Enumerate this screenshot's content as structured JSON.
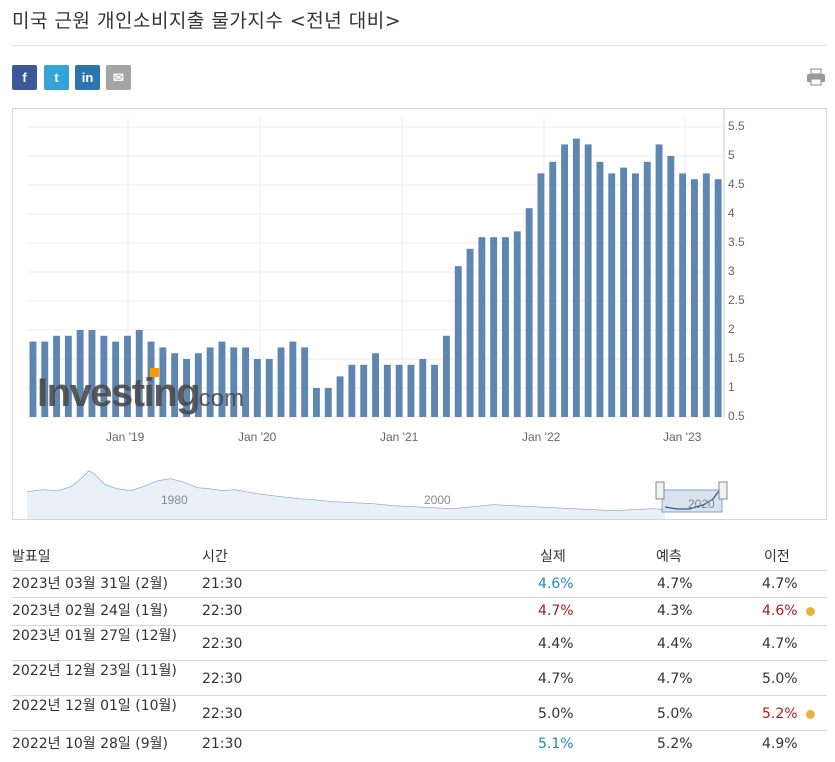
{
  "page": {
    "title": "미국 근원 개인소비지출 물가지수 <전년 대비>"
  },
  "social": [
    {
      "name": "facebook",
      "glyph": "f",
      "color": "#3b5998"
    },
    {
      "name": "twitter",
      "glyph": "t",
      "color": "#34a3d6"
    },
    {
      "name": "linkedin",
      "glyph": "in",
      "color": "#2d74ad"
    },
    {
      "name": "email",
      "glyph": "✉",
      "color": "#a5a5a5"
    }
  ],
  "chart": {
    "watermark": "Investing",
    "watermark_suffix": ".com",
    "x_ticks": [
      "Jan '19",
      "Jan '20",
      "Jan '21",
      "Jan '22",
      "Jan '23"
    ],
    "y_ticks": [
      "5.5",
      "5",
      "4.5",
      "4",
      "3.5",
      "3",
      "2.5",
      "2",
      "1.5",
      "1",
      "0.5"
    ],
    "navigator_ticks": [
      "1980",
      "2000",
      "2020"
    ]
  },
  "chart_data": {
    "type": "bar",
    "ylim": [
      0.5,
      5.5
    ],
    "values": [
      1.8,
      1.8,
      1.9,
      1.9,
      2.0,
      2.0,
      1.9,
      1.8,
      1.9,
      2.0,
      1.8,
      1.7,
      1.6,
      1.5,
      1.6,
      1.7,
      1.8,
      1.7,
      1.7,
      1.5,
      1.5,
      1.7,
      1.8,
      1.7,
      1.0,
      1.0,
      1.2,
      1.4,
      1.4,
      1.6,
      1.4,
      1.4,
      1.4,
      1.5,
      1.4,
      1.9,
      3.1,
      3.4,
      3.6,
      3.6,
      3.6,
      3.7,
      4.1,
      4.7,
      4.9,
      5.2,
      5.3,
      5.2,
      4.9,
      4.7,
      4.8,
      4.7,
      4.9,
      5.2,
      5.0,
      4.7,
      4.6,
      4.7,
      4.6
    ],
    "x_tick_labels": [
      "Jan '19",
      "Jan '20",
      "Jan '21",
      "Jan '22",
      "Jan '23"
    ],
    "grid": true
  },
  "table": {
    "headers": [
      "발표일",
      "시간",
      "실제",
      "예측",
      "이전"
    ],
    "rows": [
      {
        "date": "2023년 03월 31일 (2월)",
        "time": "21:30",
        "actual": "4.6%",
        "forecast": "4.7%",
        "previous": "4.7%",
        "actual_trend": "down",
        "prev_trend": "",
        "dot": false
      },
      {
        "date": "2023년 02월 24일 (1월)",
        "time": "22:30",
        "actual": "4.7%",
        "forecast": "4.3%",
        "previous": "4.6%",
        "actual_trend": "up",
        "prev_trend": "up",
        "dot": true
      },
      {
        "date": "2023년 01월 27일 (12월)",
        "time": "22:30",
        "actual": "4.4%",
        "forecast": "4.4%",
        "previous": "4.7%",
        "actual_trend": "",
        "prev_trend": "",
        "dot": false
      },
      {
        "date": "2022년 12월 23일 (11월)",
        "time": "22:30",
        "actual": "4.7%",
        "forecast": "4.7%",
        "previous": "5.0%",
        "actual_trend": "",
        "prev_trend": "",
        "dot": false
      },
      {
        "date": "2022년 12월 01일 (10월)",
        "time": "22:30",
        "actual": "5.0%",
        "forecast": "5.0%",
        "previous": "5.2%",
        "actual_trend": "",
        "prev_trend": "up",
        "dot": true
      },
      {
        "date": "2022년 10월 28일 (9월)",
        "time": "21:30",
        "actual": "5.1%",
        "forecast": "5.2%",
        "previous": "4.9%",
        "actual_trend": "down",
        "prev_trend": "",
        "dot": false
      }
    ]
  }
}
